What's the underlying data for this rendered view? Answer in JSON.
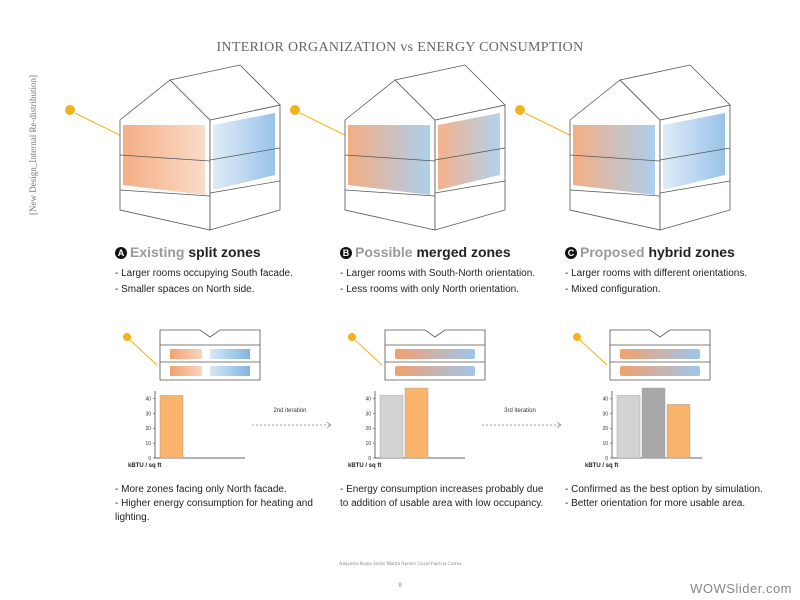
{
  "title": "INTERIOR ORGANIZATION vs ENERGY CONSUMPTION",
  "side_label": "[New Design_Internal Re-distribution]",
  "columns": [
    {
      "letter": "A",
      "heading_light": "Existing",
      "heading_bold": "split zones",
      "notes": [
        "- Larger rooms occupying South facade.",
        "- Smaller spaces on North side."
      ],
      "chart": {
        "type": "bar",
        "values": [
          42
        ],
        "colors": [
          "#f9b36b"
        ],
        "ylim": [
          0,
          45
        ],
        "yticks": [
          0,
          10,
          20,
          30,
          40
        ],
        "ylabel": "kBTU / sq ft"
      },
      "findings": [
        "- More zones facing only North facade.",
        "- Higher energy consumption for heating and lighting."
      ]
    },
    {
      "letter": "B",
      "heading_light": "Possible",
      "heading_bold": "merged zones",
      "notes": [
        "- Larger rooms with South-North orientation.",
        "- Less rooms with only North orientation."
      ],
      "chart": {
        "type": "bar",
        "values": [
          42,
          47
        ],
        "colors": [
          "#d3d3d3",
          "#f9b36b"
        ],
        "ylim": [
          0,
          45
        ],
        "yticks": [
          0,
          10,
          20,
          30,
          40
        ],
        "ylabel": "kBTU / sq ft"
      },
      "findings": [
        "- Energy consumption increases probably due to addition of usable area with low occupancy."
      ]
    },
    {
      "letter": "C",
      "heading_light": "Proposed",
      "heading_bold": "hybrid zones",
      "notes": [
        "- Larger rooms with different orientations.",
        "- Mixed configuration."
      ],
      "chart": {
        "type": "bar",
        "values": [
          42,
          47,
          36
        ],
        "colors": [
          "#d3d3d3",
          "#a8a8aa",
          "#f9b36b"
        ],
        "ylim": [
          0,
          45
        ],
        "yticks": [
          0,
          10,
          20,
          30,
          40
        ],
        "ylabel": "kBTU / sq ft"
      },
      "findings": [
        "- Confirmed as the best option by simulation.",
        "- Better orientation for more usable area."
      ]
    }
  ],
  "transitions": [
    "2nd iteration",
    "3rd iteration"
  ],
  "footer": {
    "authors": "Alejandra Romo   Javier Martin   Apoorv Goyal   Patricia Correa",
    "page": "8"
  },
  "watermark": "WOWSlider.com"
}
